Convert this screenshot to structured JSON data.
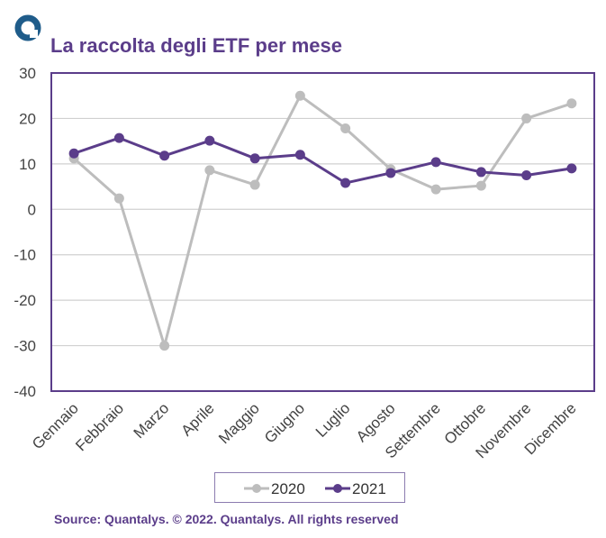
{
  "header": {
    "title": "La raccolta degli ETF per mese",
    "logo_icon": "quantalys-ring-logo"
  },
  "footer": {
    "source": "Source: Quantalys. © 2022. Quantalys. All rights reserved"
  },
  "colors": {
    "title": "#5b3d8a",
    "frame": "#5b3d8a",
    "series_2020": "#bdbdbd",
    "series_2021": "#5b3d8a",
    "logo": "#1f5c8a",
    "grid": "#d0d0d0"
  },
  "chart_data": {
    "type": "line",
    "title": "La raccolta degli ETF per mese",
    "xlabel": "",
    "ylabel": "",
    "ylim": [
      -40,
      30
    ],
    "yticks": [
      "30",
      "20",
      "10",
      "0",
      "-10",
      "-20",
      "-30",
      "-40"
    ],
    "grid": true,
    "legend_position": "bottom",
    "categories": [
      "Gennaio",
      "Febbraio",
      "Marzo",
      "Aprile",
      "Maggio",
      "Giugno",
      "Luglio",
      "Agosto",
      "Settembre",
      "Ottobre",
      "Novembre",
      "Dicembre"
    ],
    "series": [
      {
        "name": "2020",
        "values": [
          11.2,
          2.4,
          -30.0,
          8.6,
          5.4,
          25.0,
          17.8,
          8.8,
          4.4,
          5.2,
          20.0,
          23.3
        ]
      },
      {
        "name": "2021",
        "values": [
          12.3,
          15.7,
          11.8,
          15.1,
          11.2,
          12.0,
          5.8,
          8.0,
          10.4,
          8.2,
          7.5,
          9.0
        ]
      }
    ]
  }
}
